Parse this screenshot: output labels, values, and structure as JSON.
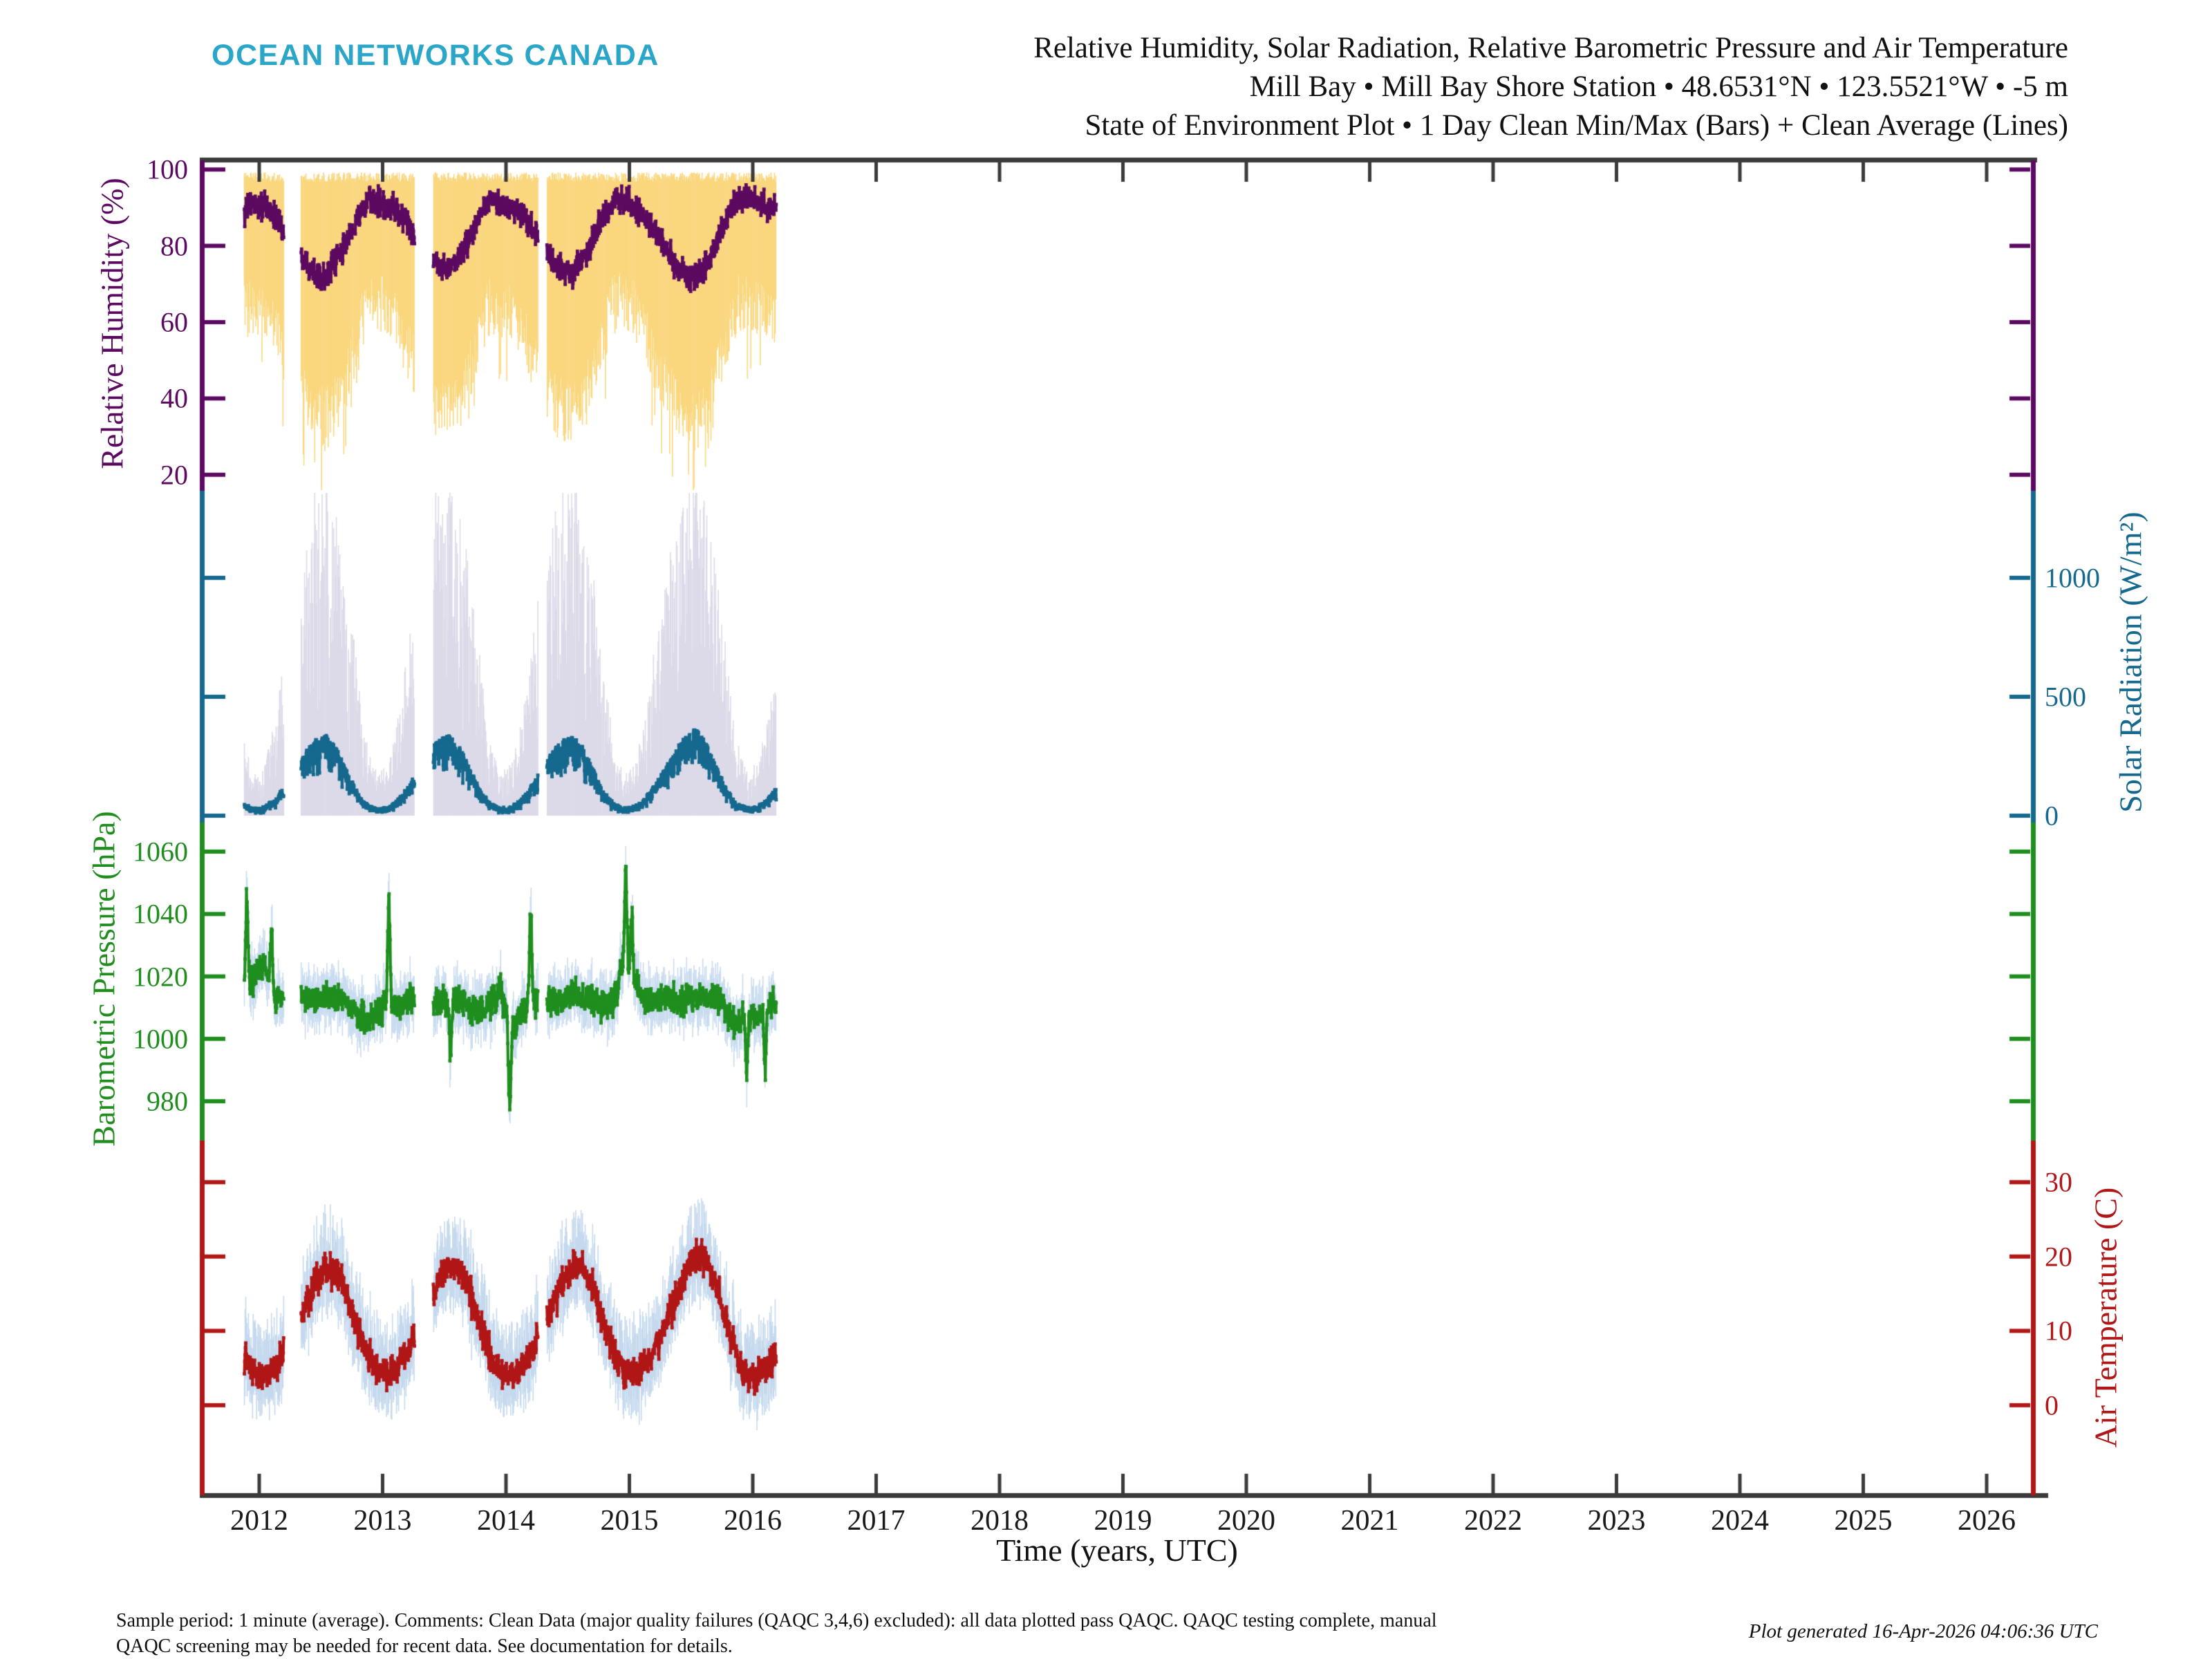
{
  "header": {
    "logo": "OCEAN NETWORKS CANADA",
    "title_line1": "Relative Humidity, Solar Radiation, Relative Barometric Pressure and Air Temperature",
    "title_line2": "Mill Bay • Mill Bay Shore Station • 48.6531°N • 123.5521°W • -5 m",
    "title_line3": "State of Environment Plot • 1 Day Clean Min/Max (Bars) + Clean Average (Lines)"
  },
  "footer": {
    "note_line1": "Sample period: 1 minute (average). Comments: Clean Data (major quality failures (QAQC 3,4,6) excluded): all data plotted pass QAQC. QAQC testing complete, manual",
    "note_line2": "QAQC screening may be needed for recent data. See documentation for details.",
    "generated": "Plot generated 16-Apr-2026 04:06:36 UTC"
  },
  "colors": {
    "logo": "#2AA6C9",
    "frame": "#3B3B3B",
    "humidity_line": "#5C0A61",
    "humidity_bar": "#FAD77E",
    "solar_line": "#16698E",
    "solar_bar": "#DCDAE8",
    "pressure_line": "#1F8E1F",
    "pressure_bar": "#C9DCF0",
    "temperature_line": "#B11717",
    "temperature_bar": "#C5D9EE"
  },
  "chart_data": {
    "type": "line",
    "style": "Four stacked panels sharing one time axis; each shows 1-day min/max vertical bars behind a daily clean-average line with square markers",
    "title": "Relative Humidity, Solar Radiation, Relative Barometric Pressure and Air Temperature",
    "x_axis": {
      "label": "Time (years, UTC)",
      "ticks": [
        2012,
        2013,
        2014,
        2015,
        2016,
        2017,
        2018,
        2019,
        2020,
        2021,
        2022,
        2023,
        2024,
        2025,
        2026
      ],
      "range": [
        2011.53,
        2026.37
      ]
    },
    "data_range": {
      "start": 2011.88,
      "end": 2016.19
    },
    "gaps": [
      [
        2012.2,
        2012.34
      ],
      [
        2013.26,
        2013.41
      ],
      [
        2014.26,
        2014.33
      ]
    ],
    "anchor_t": [
      2011.88,
      2011.958,
      2012.042,
      2012.125,
      2012.208,
      2012.292,
      2012.375,
      2012.458,
      2012.542,
      2012.625,
      2012.708,
      2012.792,
      2012.875,
      2012.958,
      2013.042,
      2013.125,
      2013.208,
      2013.292,
      2013.375,
      2013.458,
      2013.542,
      2013.625,
      2013.708,
      2013.792,
      2013.875,
      2013.958,
      2014.042,
      2014.125,
      2014.208,
      2014.292,
      2014.375,
      2014.458,
      2014.542,
      2014.625,
      2014.708,
      2014.792,
      2014.875,
      2014.958,
      2015.042,
      2015.125,
      2015.208,
      2015.292,
      2015.375,
      2015.458,
      2015.542,
      2015.625,
      2015.708,
      2015.792,
      2015.875,
      2015.958,
      2016.042,
      2016.125,
      2016.19
    ],
    "panels": [
      {
        "name": "relative_humidity",
        "label": "Relative Humidity (%)",
        "unit": "%",
        "side": "left",
        "line_color": "#5C0A61",
        "bar_color": "#FAD77E",
        "ticks": [
          20,
          40,
          60,
          80,
          100
        ],
        "ylim": [
          15.8,
          102.4
        ],
        "monthly_avg": [
          89,
          91,
          90,
          88,
          84,
          79,
          76,
          73,
          72,
          76,
          81,
          87,
          91,
          92,
          90,
          89,
          86,
          80,
          77,
          75,
          74,
          77,
          82,
          88,
          92,
          91,
          90,
          88,
          85,
          80,
          76,
          74,
          73,
          77,
          82,
          88,
          92,
          92,
          90,
          87,
          84,
          79,
          75,
          72,
          71,
          75,
          81,
          88,
          92,
          93,
          91,
          90,
          90
        ],
        "monthly_min": [
          62,
          64,
          63,
          58,
          50,
          45,
          40,
          37,
          35,
          39,
          46,
          56,
          64,
          65,
          63,
          60,
          52,
          46,
          41,
          38,
          37,
          40,
          47,
          57,
          65,
          64,
          63,
          59,
          51,
          45,
          40,
          37,
          36,
          40,
          47,
          57,
          65,
          65,
          63,
          58,
          50,
          44,
          39,
          36,
          34,
          38,
          45,
          56,
          64,
          66,
          64,
          61,
          60
        ],
        "max_const": 98
      },
      {
        "name": "solar_radiation",
        "label": "Solar Radiation (W/m²)",
        "unit": "W/m²",
        "side": "right",
        "line_color": "#16698E",
        "bar_color": "#DCDAE8",
        "ticks": [
          0,
          500,
          1000
        ],
        "ylim": [
          -29,
          1366
        ],
        "monthly_avg": [
          38,
          22,
          28,
          55,
          105,
          165,
          230,
          275,
          290,
          245,
          165,
          85,
          38,
          22,
          28,
          55,
          105,
          165,
          230,
          278,
          292,
          248,
          168,
          88,
          40,
          23,
          29,
          56,
          108,
          168,
          232,
          276,
          288,
          246,
          166,
          86,
          39,
          22,
          30,
          58,
          110,
          170,
          240,
          290,
          318,
          260,
          175,
          90,
          40,
          24,
          30,
          60,
          95
        ],
        "monthly_max": [
          270,
          150,
          190,
          360,
          620,
          880,
          1080,
          1230,
          1290,
          1160,
          900,
          560,
          270,
          150,
          195,
          365,
          625,
          885,
          1085,
          1235,
          1295,
          1165,
          905,
          565,
          275,
          155,
          198,
          368,
          628,
          888,
          1082,
          1228,
          1288,
          1158,
          898,
          558,
          268,
          148,
          200,
          370,
          630,
          890,
          1100,
          1250,
          1310,
          1180,
          910,
          570,
          272,
          152,
          205,
          380,
          520
        ],
        "min_const": 0
      },
      {
        "name": "barometric_pressure",
        "label": "Barometric Pressure (hPa)",
        "unit": "hPa",
        "side": "left",
        "line_color": "#1F8E1F",
        "bar_color": "#C9DCF0",
        "ticks": [
          980,
          1000,
          1020,
          1040,
          1060
        ],
        "ylim": [
          967.4,
          1069.3
        ],
        "monthly_avg": [
          1014,
          1020,
          1024,
          1012,
          1014,
          1015,
          1013,
          1012,
          1014,
          1013,
          1012,
          1008,
          1006,
          1008,
          1012,
          1010,
          1013,
          1014,
          1012,
          1011,
          1013,
          1012,
          1010,
          1009,
          1011,
          1015,
          1003,
          1008,
          1012,
          1013,
          1012,
          1012,
          1014,
          1013,
          1012,
          1010,
          1012,
          1025,
          1018,
          1012,
          1013,
          1014,
          1013,
          1012,
          1014,
          1013,
          1013,
          1008,
          1005,
          1008,
          1007,
          1010,
          1012
        ],
        "band_halfwidth": 6,
        "events": [
          {
            "t": 2011.9,
            "delta": 29
          },
          {
            "t": 2012.1,
            "delta": 20
          },
          {
            "t": 2013.05,
            "delta": 32
          },
          {
            "t": 2013.55,
            "delta": -20
          },
          {
            "t": 2014.03,
            "delta": -27
          },
          {
            "t": 2014.2,
            "delta": 30
          },
          {
            "t": 2014.97,
            "delta": 31
          },
          {
            "t": 2015.02,
            "delta": 18
          },
          {
            "t": 2015.95,
            "delta": -17
          },
          {
            "t": 2016.1,
            "delta": -19
          }
        ]
      },
      {
        "name": "air_temperature",
        "label": "Air Temperature (C)",
        "unit": "C",
        "side": "right",
        "line_color": "#B11717",
        "bar_color": "#C5D9EE",
        "ticks": [
          0,
          10,
          20,
          30
        ],
        "ylim": [
          -12.1,
          35.6
        ],
        "monthly_avg": [
          6.5,
          4.2,
          4,
          5,
          7,
          10,
          13.5,
          16.5,
          18.5,
          18,
          15,
          10.5,
          6.5,
          4.5,
          4.2,
          5.2,
          7.5,
          10.5,
          13.8,
          16.8,
          18.8,
          18.2,
          15.2,
          10.8,
          6.8,
          4.4,
          4,
          5,
          7.2,
          10.2,
          13.6,
          16.6,
          18.6,
          18.4,
          15.4,
          11,
          7,
          4.6,
          4.4,
          5.4,
          7.8,
          11,
          14.5,
          18,
          20.5,
          19.5,
          16,
          11,
          6.5,
          3.8,
          4.2,
          5.5,
          7
        ],
        "band_below": 4.5,
        "band_above": 5.5
      }
    ]
  }
}
